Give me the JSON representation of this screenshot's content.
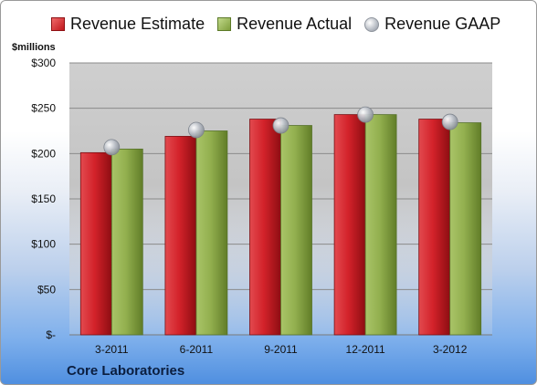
{
  "chart_data": {
    "type": "bar",
    "categories": [
      "3-2011",
      "6-2011",
      "9-2011",
      "12-2011",
      "3-2012"
    ],
    "series": [
      {
        "name": "Revenue Estimate",
        "kind": "bar",
        "color": "#c8191e",
        "values": [
          201,
          219,
          238,
          243,
          238
        ]
      },
      {
        "name": "Revenue Actual",
        "kind": "bar",
        "color": "#8fad4a",
        "values": [
          205,
          225,
          231,
          243,
          234
        ]
      },
      {
        "name": "Revenue GAAP",
        "kind": "marker",
        "color": "#b0b5bd",
        "values": [
          207,
          226,
          231,
          243,
          235
        ]
      }
    ],
    "ylabel": "$millions",
    "ylim": [
      0,
      300
    ],
    "yticks": [
      0,
      50,
      100,
      150,
      200,
      250,
      300
    ],
    "ytick_labels": [
      "$-",
      "$50",
      "$100",
      "$150",
      "$200",
      "$250",
      "$300"
    ],
    "grid": true,
    "legend_position": "top"
  },
  "legend": {
    "estimate": "Revenue Estimate",
    "actual": "Revenue Actual",
    "gaap": "Revenue GAAP"
  },
  "company": "Core Laboratories"
}
